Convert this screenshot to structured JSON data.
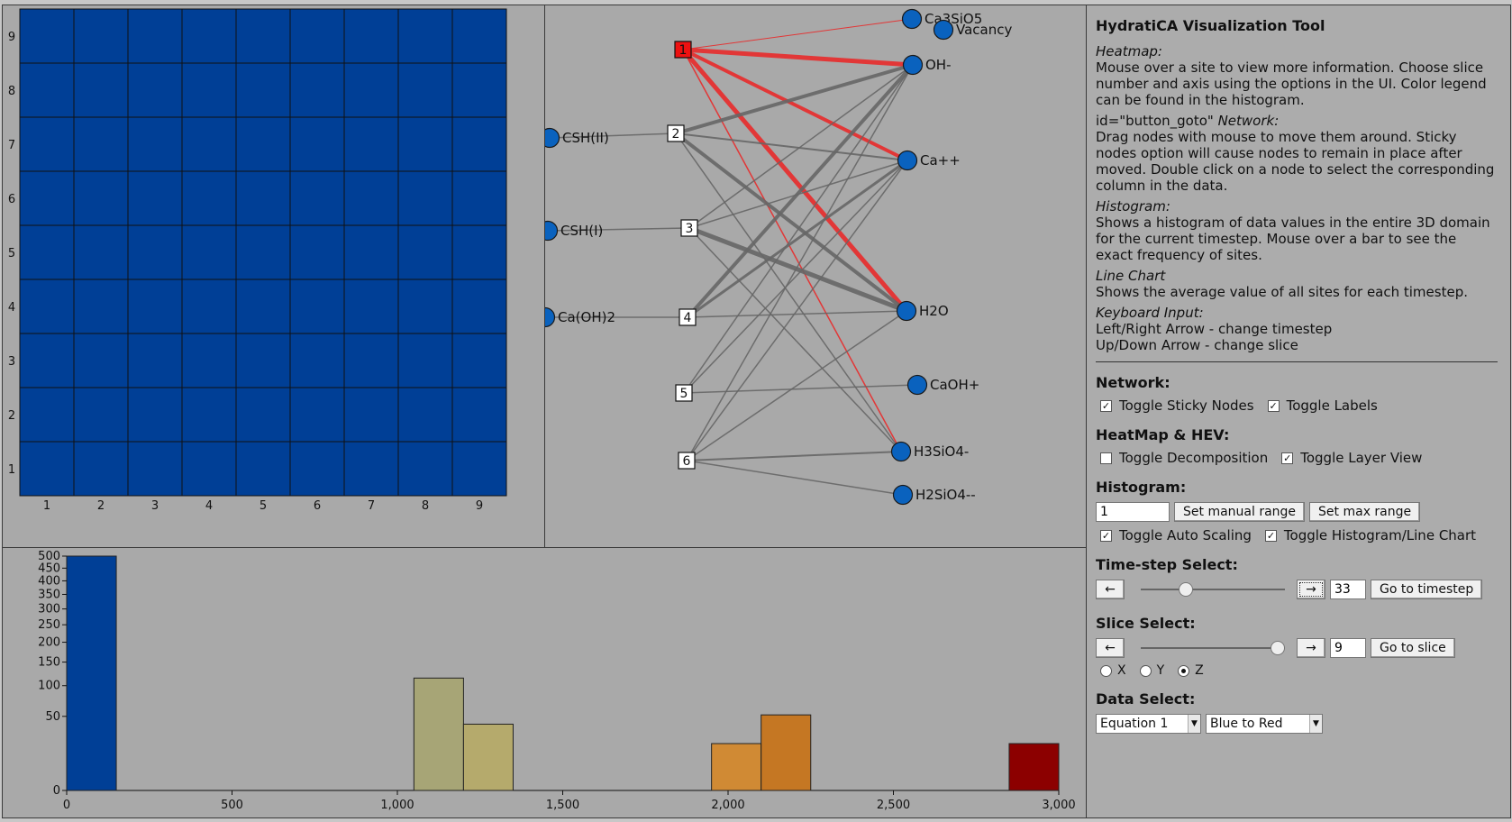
{
  "heatmap": {
    "cell_color": "#003f96",
    "rows": 9,
    "cols": 9,
    "x_ticks": [
      "1",
      "2",
      "3",
      "4",
      "5",
      "6",
      "7",
      "8",
      "9"
    ],
    "y_ticks": [
      "1",
      "2",
      "3",
      "4",
      "5",
      "6",
      "7",
      "8",
      "9"
    ]
  },
  "network": {
    "nodes": [
      {
        "id": "n1",
        "label": "1",
        "kind": "box",
        "highlight": true
      },
      {
        "id": "n2",
        "label": "2",
        "kind": "box"
      },
      {
        "id": "n3",
        "label": "3",
        "kind": "box"
      },
      {
        "id": "n4",
        "label": "4",
        "kind": "box"
      },
      {
        "id": "n5",
        "label": "5",
        "kind": "box"
      },
      {
        "id": "n6",
        "label": "6",
        "kind": "box"
      },
      {
        "id": "csh2",
        "label": "CSH(II)",
        "kind": "circle"
      },
      {
        "id": "csh1",
        "label": "CSH(I)",
        "kind": "circle"
      },
      {
        "id": "caoh2",
        "label": "Ca(OH)2",
        "kind": "circle"
      },
      {
        "id": "ca3sio5",
        "label": "Ca3SiO5",
        "kind": "circle"
      },
      {
        "id": "vacancy",
        "label": "Vacancy",
        "kind": "circle"
      },
      {
        "id": "oh",
        "label": "OH-",
        "kind": "circle"
      },
      {
        "id": "capp",
        "label": "Ca++",
        "kind": "circle"
      },
      {
        "id": "h2o",
        "label": "H2O",
        "kind": "circle"
      },
      {
        "id": "caohp",
        "label": "CaOH+",
        "kind": "circle"
      },
      {
        "id": "h3sio4",
        "label": "H3SiO4-",
        "kind": "circle"
      },
      {
        "id": "h2sio4",
        "label": "H2SiO4--",
        "kind": "circle"
      }
    ],
    "edges": [
      {
        "from": "n1",
        "to": "ca3sio5",
        "w": 1,
        "red": true
      },
      {
        "from": "n1",
        "to": "oh",
        "w": 5,
        "red": true
      },
      {
        "from": "n1",
        "to": "capp",
        "w": 4,
        "red": true
      },
      {
        "from": "n1",
        "to": "h2o",
        "w": 5,
        "red": true
      },
      {
        "from": "n1",
        "to": "h3sio4",
        "w": 1.5,
        "red": true
      },
      {
        "from": "n2",
        "to": "csh2",
        "w": 1.5
      },
      {
        "from": "n2",
        "to": "oh",
        "w": 4
      },
      {
        "from": "n2",
        "to": "capp",
        "w": 2
      },
      {
        "from": "n2",
        "to": "h2o",
        "w": 4
      },
      {
        "from": "n2",
        "to": "h3sio4",
        "w": 1.5
      },
      {
        "from": "n3",
        "to": "csh1",
        "w": 1.5
      },
      {
        "from": "n3",
        "to": "oh",
        "w": 1.5
      },
      {
        "from": "n3",
        "to": "capp",
        "w": 1.5
      },
      {
        "from": "n3",
        "to": "h2o",
        "w": 5
      },
      {
        "from": "n3",
        "to": "h3sio4",
        "w": 1.5
      },
      {
        "from": "n4",
        "to": "caoh2",
        "w": 1.5
      },
      {
        "from": "n4",
        "to": "oh",
        "w": 4
      },
      {
        "from": "n4",
        "to": "capp",
        "w": 3
      },
      {
        "from": "n4",
        "to": "h2o",
        "w": 1.5
      },
      {
        "from": "n5",
        "to": "oh",
        "w": 1.5
      },
      {
        "from": "n5",
        "to": "capp",
        "w": 1.5
      },
      {
        "from": "n5",
        "to": "caohp",
        "w": 1.5
      },
      {
        "from": "n6",
        "to": "oh",
        "w": 1.5
      },
      {
        "from": "n6",
        "to": "capp",
        "w": 1.5
      },
      {
        "from": "n6",
        "to": "h2o",
        "w": 1.5
      },
      {
        "from": "n6",
        "to": "h3sio4",
        "w": 2
      },
      {
        "from": "n6",
        "to": "h2sio4",
        "w": 1.5
      }
    ]
  },
  "chart_data": {
    "type": "bar",
    "xlim": [
      0,
      3000
    ],
    "x_ticks": [
      "0",
      "500",
      "1,000",
      "1,500",
      "2,000",
      "2,500",
      "3,000"
    ],
    "y_ticks": [
      "0",
      "50",
      "100",
      "150",
      "200",
      "250",
      "300",
      "350",
      "400",
      "450",
      "500"
    ],
    "bins": [
      {
        "x0": 0,
        "x1": 150,
        "value": 500,
        "color": "#003f96"
      },
      {
        "x0": 1050,
        "x1": 1200,
        "value": 115,
        "color": "#a7a576"
      },
      {
        "x0": 1200,
        "x1": 1350,
        "value": 40,
        "color": "#b5aa6c"
      },
      {
        "x0": 1950,
        "x1": 2100,
        "value": 20,
        "color": "#d08a34"
      },
      {
        "x0": 2100,
        "x1": 2250,
        "value": 52,
        "color": "#c57723"
      },
      {
        "x0": 2850,
        "x1": 3000,
        "value": 20,
        "color": "#8c0000"
      }
    ]
  },
  "sidebar": {
    "title": "HydratiCA Visualization Tool",
    "help": [
      {
        "head": "Heatmap:",
        "body": "Mouse over a site to view more information. Choose slice number and axis using the options in the UI. Color legend can be found in the histogram."
      },
      {
        "head_prefix": "id=\"button_goto\" ",
        "head": "Network:",
        "body": "Drag nodes with mouse to move them around. Sticky nodes option will cause nodes to remain in place after moved. Double click on a node to select the corresponding column in the data."
      },
      {
        "head": "Histogram:",
        "body": "Shows a histogram of data values in the entire 3D domain for the current timestep. Mouse over a bar to see the exact frequency of sites."
      },
      {
        "head": "Line Chart",
        "body": "Shows the average value of all sites for each timestep."
      },
      {
        "head": "Keyboard Input:",
        "body": "Left/Right Arrow - change timestep\nUp/Down Arrow - change slice"
      }
    ],
    "network_title": "Network:",
    "sticky_label": "Toggle Sticky Nodes",
    "labels_label": "Toggle Labels",
    "heatmap_title": "HeatMap & HEV:",
    "decomp_label": "Toggle Decomposition",
    "layer_label": "Toggle Layer View",
    "hist_title": "Histogram:",
    "range_value": "1",
    "manual_range_label": "Set manual range",
    "max_range_label": "Set max range",
    "autoscale_label": "Toggle Auto Scaling",
    "histline_label": "Toggle Histogram/Line Chart",
    "timestep_title": "Time-step Select:",
    "prev_label": "←",
    "next_label": "→",
    "timestep_value": "33",
    "goto_timestep_label": "Go to timestep",
    "timestep_slider_fraction": 0.29,
    "slice_title": "Slice Select:",
    "slice_value": "9",
    "goto_slice_label": "Go to slice",
    "slice_slider_fraction": 1.0,
    "axis_x": "X",
    "axis_y": "Y",
    "axis_z": "Z",
    "data_title": "Data Select:",
    "equation_value": "Equation 1",
    "colormap_value": "Blue to Red"
  }
}
